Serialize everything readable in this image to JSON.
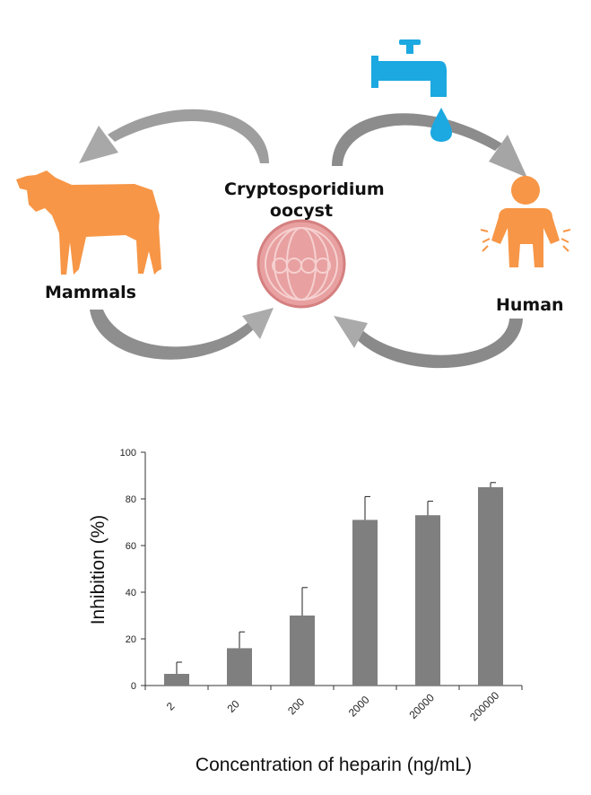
{
  "diagram": {
    "center_label_line1": "Cryptosporidium",
    "center_label_line2": "oocyst",
    "left_label": "Mammals",
    "right_label": "Human",
    "icons": [
      "cow-icon",
      "oocyst-icon",
      "water-tap-icon",
      "water-drop-icon",
      "sick-person-icon",
      "cycle-arrow-icon"
    ],
    "colors": {
      "animal": "#F79646",
      "tap": "#1CA8E0",
      "oocyst": "#E8A0A0",
      "arrow": "#9B9B9B"
    }
  },
  "chart_data": {
    "type": "bar",
    "categories": [
      "2",
      "20",
      "200",
      "2000",
      "20000",
      "200000"
    ],
    "values": [
      5,
      16,
      30,
      71,
      73,
      85
    ],
    "errors": [
      5,
      7,
      12,
      10,
      6,
      2
    ],
    "title": "",
    "xlabel": "Concentration of  heparin (ng/mL)",
    "ylabel": "Inhibition (%)",
    "ylim": [
      0,
      100
    ],
    "yticks": [
      "0",
      "20",
      "40",
      "60",
      "80",
      "100"
    ],
    "grid": false,
    "bar_color": "#7F7F7F"
  }
}
